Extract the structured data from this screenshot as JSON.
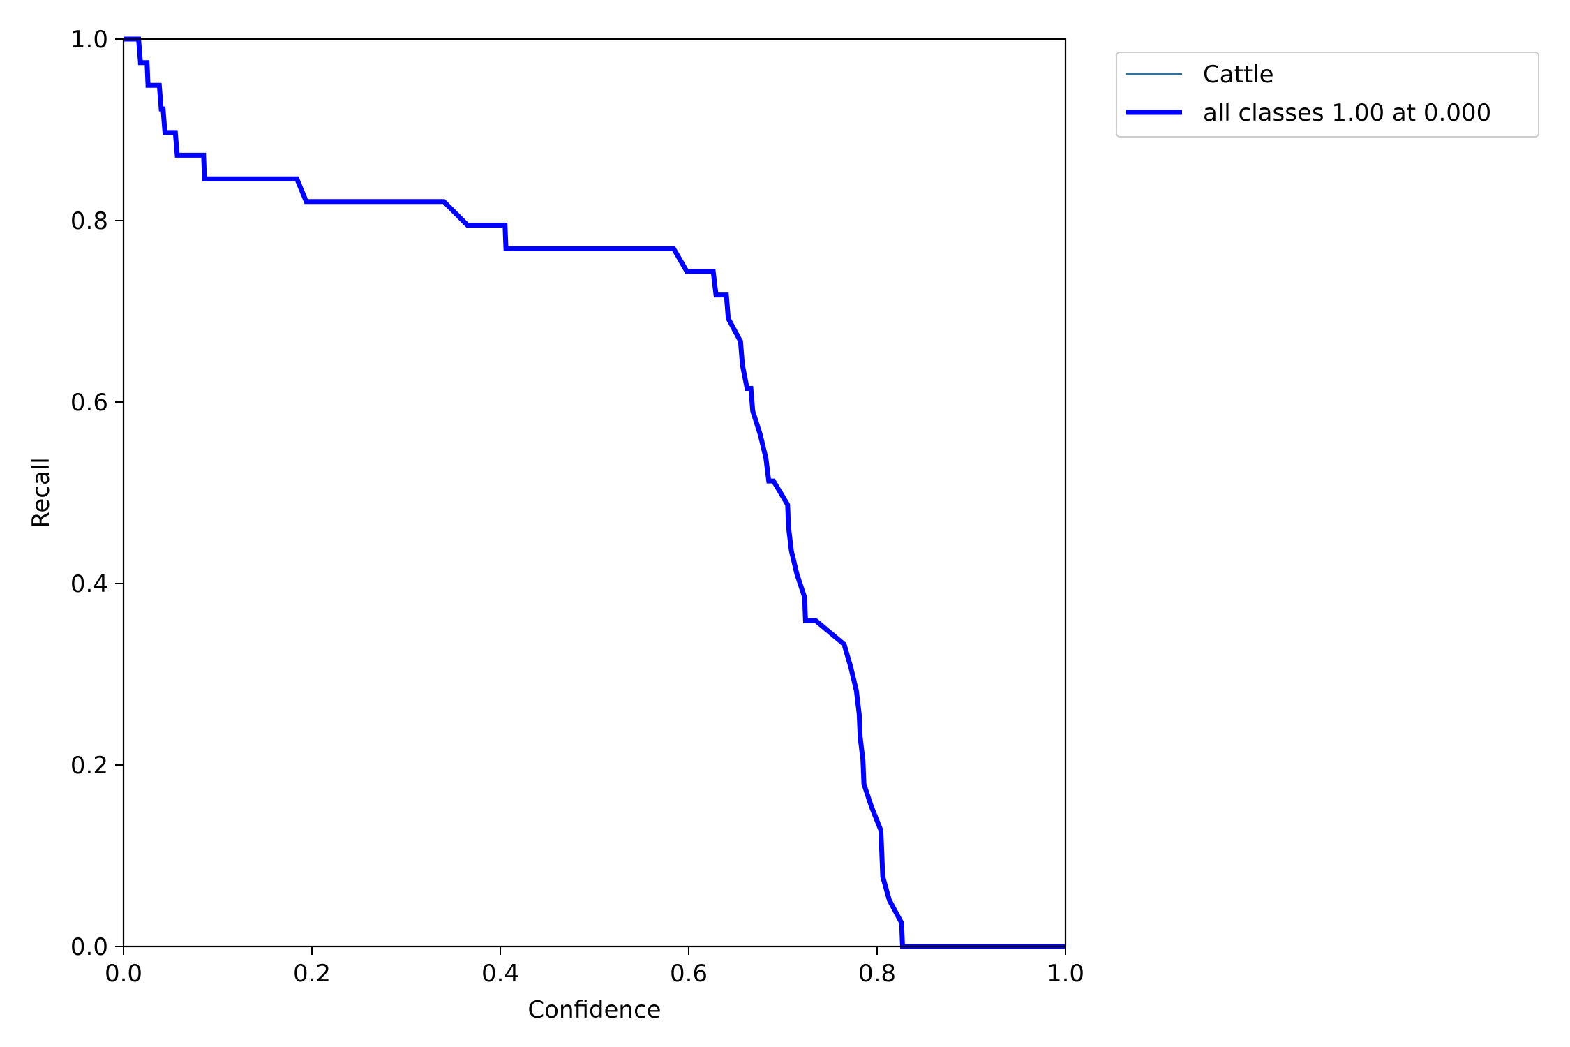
{
  "chart_data": {
    "type": "line",
    "title": "",
    "xlabel": "Confidence",
    "ylabel": "Recall",
    "xlim": [
      0,
      1
    ],
    "ylim": [
      0,
      1
    ],
    "xticks": [
      "0.0",
      "0.2",
      "0.4",
      "0.6",
      "0.8",
      "1.0"
    ],
    "yticks": [
      "0.0",
      "0.2",
      "0.4",
      "0.6",
      "0.8",
      "1.0"
    ],
    "grid": false,
    "legend_position": "outside top-right",
    "series": [
      {
        "name": "Cattle",
        "color": "#1f77b4",
        "linewidth": "thin",
        "x": [
          0.0,
          0.016,
          0.018,
          0.025,
          0.026,
          0.038,
          0.04,
          0.042,
          0.044,
          0.055,
          0.057,
          0.085,
          0.086,
          0.184,
          0.194,
          0.34,
          0.365,
          0.405,
          0.406,
          0.584,
          0.598,
          0.626,
          0.629,
          0.64,
          0.642,
          0.655,
          0.657,
          0.662,
          0.666,
          0.668,
          0.676,
          0.682,
          0.685,
          0.69,
          0.705,
          0.706,
          0.709,
          0.715,
          0.723,
          0.724,
          0.735,
          0.765,
          0.772,
          0.778,
          0.781,
          0.782,
          0.785,
          0.786,
          0.794,
          0.804,
          0.806,
          0.813,
          0.826,
          0.827,
          1.0
        ],
        "y": [
          1.0,
          1.0,
          0.974,
          0.974,
          0.949,
          0.949,
          0.923,
          0.923,
          0.897,
          0.897,
          0.872,
          0.872,
          0.846,
          0.846,
          0.821,
          0.821,
          0.795,
          0.795,
          0.769,
          0.769,
          0.744,
          0.744,
          0.718,
          0.718,
          0.692,
          0.667,
          0.641,
          0.615,
          0.615,
          0.59,
          0.564,
          0.538,
          0.513,
          0.513,
          0.487,
          0.462,
          0.436,
          0.41,
          0.385,
          0.359,
          0.359,
          0.333,
          0.308,
          0.282,
          0.256,
          0.231,
          0.205,
          0.179,
          0.154,
          0.128,
          0.077,
          0.051,
          0.026,
          0.0,
          0.0
        ]
      },
      {
        "name": "all classes 1.00 at 0.000",
        "color": "#0000ff",
        "linewidth": "thick",
        "x": [
          0.0,
          0.016,
          0.018,
          0.025,
          0.026,
          0.038,
          0.04,
          0.042,
          0.044,
          0.055,
          0.057,
          0.085,
          0.086,
          0.184,
          0.194,
          0.34,
          0.365,
          0.405,
          0.406,
          0.584,
          0.598,
          0.626,
          0.629,
          0.64,
          0.642,
          0.655,
          0.657,
          0.662,
          0.666,
          0.668,
          0.676,
          0.682,
          0.685,
          0.69,
          0.705,
          0.706,
          0.709,
          0.715,
          0.723,
          0.724,
          0.735,
          0.765,
          0.772,
          0.778,
          0.781,
          0.782,
          0.785,
          0.786,
          0.794,
          0.804,
          0.806,
          0.813,
          0.826,
          0.827,
          1.0
        ],
        "y": [
          1.0,
          1.0,
          0.974,
          0.974,
          0.949,
          0.949,
          0.923,
          0.923,
          0.897,
          0.897,
          0.872,
          0.872,
          0.846,
          0.846,
          0.821,
          0.821,
          0.795,
          0.795,
          0.769,
          0.769,
          0.744,
          0.744,
          0.718,
          0.718,
          0.692,
          0.667,
          0.641,
          0.615,
          0.615,
          0.59,
          0.564,
          0.538,
          0.513,
          0.513,
          0.487,
          0.462,
          0.436,
          0.41,
          0.385,
          0.359,
          0.359,
          0.333,
          0.308,
          0.282,
          0.256,
          0.231,
          0.205,
          0.179,
          0.154,
          0.128,
          0.077,
          0.051,
          0.026,
          0.0,
          0.0
        ]
      }
    ]
  }
}
